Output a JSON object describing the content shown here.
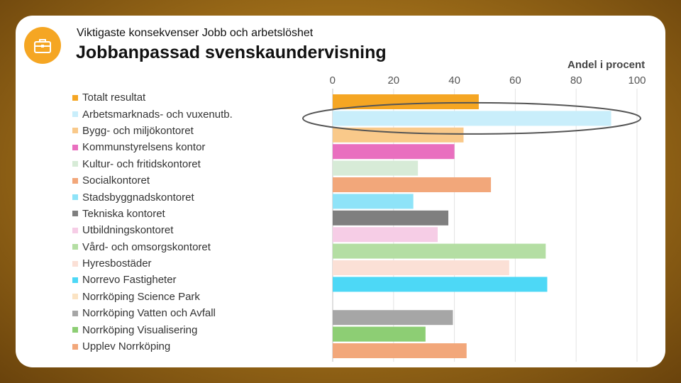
{
  "header": {
    "subtitle": "Viktigaste konsekvenser Jobb och arbetslöshet",
    "title": "Jobbanpassad svenskaundervisning",
    "icon": "briefcase-icon",
    "accent": "#f5a623"
  },
  "chart_data": {
    "type": "bar",
    "orientation": "horizontal",
    "xlabel": "Andel i procent",
    "xlim": [
      0,
      100
    ],
    "xticks": [
      "0",
      "20",
      "40",
      "60",
      "80",
      "100"
    ],
    "x_axis_position": "top",
    "grid": true,
    "legend_position": "left",
    "highlight": "Arbetsmarknads- och vuxenutb.",
    "categories": [
      "Totalt resultat",
      "Arbetsmarknads- och vuxenutb.",
      "Bygg- och miljökontoret",
      "Kommunstyrelsens kontor",
      "Kultur- och fritidskontoret",
      "Socialkontoret",
      "Stadsbyggnadskontoret",
      "Tekniska kontoret",
      "Utbildningskontoret",
      "Vård- och omsorgskontoret",
      "Hyresbostäder",
      "Norrevo Fastigheter",
      "Norrköping Science Park",
      "Norrköping Vatten och Avfall",
      "Norrköping Visualisering",
      "Upplev Norrköping"
    ],
    "values": [
      48,
      91.5,
      43,
      40,
      28,
      52,
      26.5,
      38,
      34.5,
      70,
      58,
      70.5,
      null,
      39.5,
      30.5,
      44
    ],
    "colors": [
      "#f5a623",
      "#c9eefb",
      "#f9c98a",
      "#e96fbf",
      "#d7ebd7",
      "#f2a77a",
      "#8ee3f8",
      "#7f7f7f",
      "#f6cde6",
      "#b4dea3",
      "#fbe0d6",
      "#4dd8f6",
      "#fbe3c3",
      "#a6a6a6",
      "#8dce74",
      "#f2a77a"
    ]
  }
}
